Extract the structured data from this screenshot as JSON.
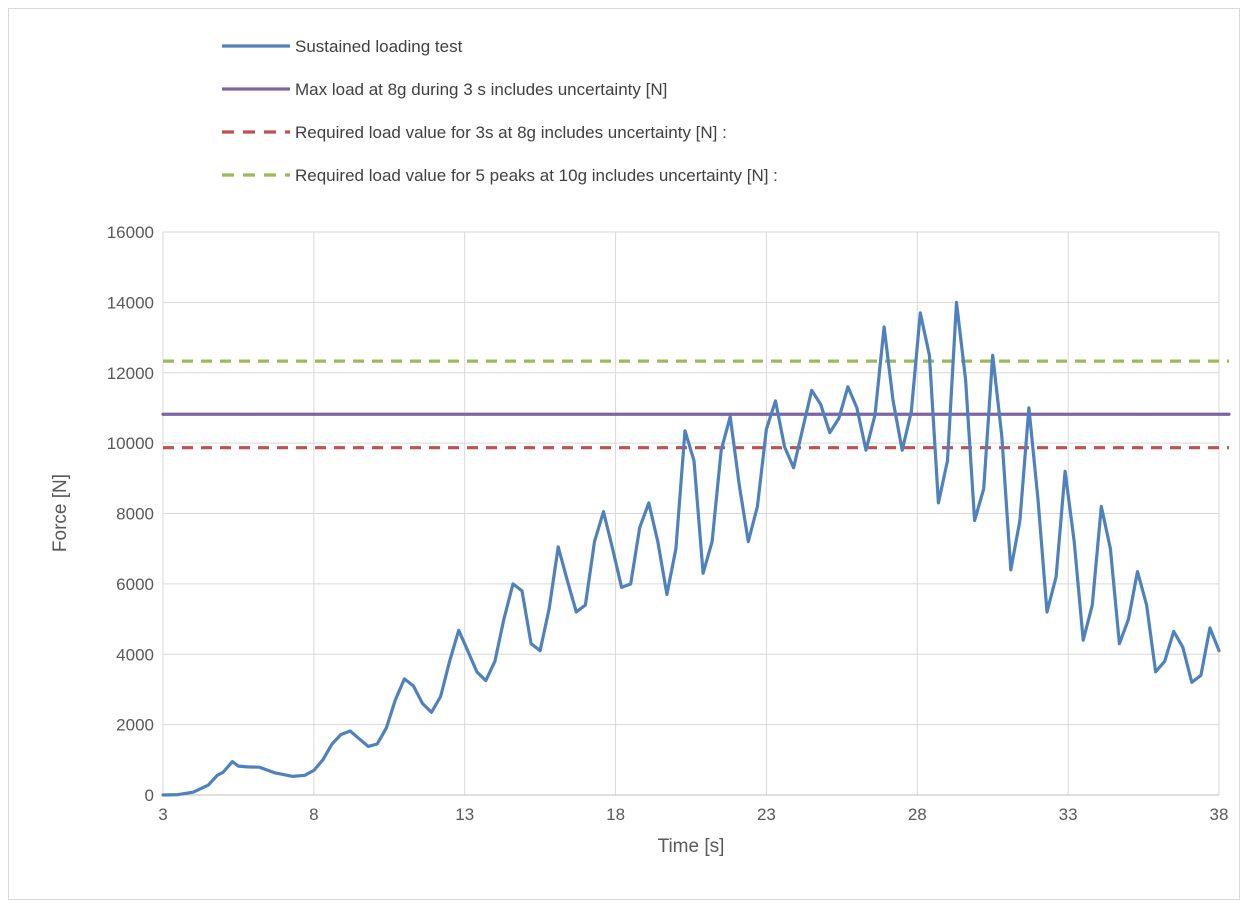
{
  "chart_data": {
    "type": "line",
    "title": "",
    "xlabel": "Time [s]",
    "ylabel": "Force [N]",
    "xlim": [
      3,
      38
    ],
    "ylim": [
      0,
      16000
    ],
    "x_ticks": [
      "3",
      "8",
      "13",
      "18",
      "23",
      "28",
      "33",
      "38"
    ],
    "y_ticks": [
      "0",
      "2000",
      "4000",
      "6000",
      "8000",
      "10000",
      "12000",
      "14000",
      "16000"
    ],
    "grid": true,
    "legend_position": "top",
    "series": [
      {
        "name": "Sustained loading test",
        "style": "solid",
        "color": "#4f81bd",
        "points": [
          [
            3.0,
            0
          ],
          [
            3.5,
            10
          ],
          [
            4.0,
            80
          ],
          [
            4.5,
            280
          ],
          [
            4.8,
            560
          ],
          [
            5.0,
            650
          ],
          [
            5.3,
            950
          ],
          [
            5.5,
            820
          ],
          [
            5.8,
            800
          ],
          [
            6.2,
            790
          ],
          [
            6.7,
            630
          ],
          [
            7.0,
            580
          ],
          [
            7.3,
            530
          ],
          [
            7.7,
            560
          ],
          [
            8.0,
            700
          ],
          [
            8.3,
            1000
          ],
          [
            8.6,
            1450
          ],
          [
            8.9,
            1720
          ],
          [
            9.2,
            1820
          ],
          [
            9.5,
            1600
          ],
          [
            9.8,
            1380
          ],
          [
            10.1,
            1450
          ],
          [
            10.4,
            1900
          ],
          [
            10.7,
            2700
          ],
          [
            11.0,
            3300
          ],
          [
            11.3,
            3100
          ],
          [
            11.6,
            2600
          ],
          [
            11.9,
            2350
          ],
          [
            12.2,
            2800
          ],
          [
            12.5,
            3800
          ],
          [
            12.8,
            4680
          ],
          [
            13.1,
            4100
          ],
          [
            13.4,
            3500
          ],
          [
            13.7,
            3250
          ],
          [
            14.0,
            3800
          ],
          [
            14.3,
            5000
          ],
          [
            14.6,
            6000
          ],
          [
            14.9,
            5800
          ],
          [
            15.2,
            4300
          ],
          [
            15.5,
            4100
          ],
          [
            15.8,
            5300
          ],
          [
            16.1,
            7050
          ],
          [
            16.4,
            6100
          ],
          [
            16.7,
            5200
          ],
          [
            17.0,
            5400
          ],
          [
            17.3,
            7200
          ],
          [
            17.6,
            8050
          ],
          [
            17.9,
            7000
          ],
          [
            18.2,
            5900
          ],
          [
            18.5,
            6000
          ],
          [
            18.8,
            7600
          ],
          [
            19.1,
            8300
          ],
          [
            19.4,
            7200
          ],
          [
            19.7,
            5700
          ],
          [
            20.0,
            7000
          ],
          [
            20.3,
            10350
          ],
          [
            20.6,
            9500
          ],
          [
            20.9,
            6300
          ],
          [
            21.2,
            7200
          ],
          [
            21.5,
            9800
          ],
          [
            21.8,
            10750
          ],
          [
            22.1,
            8800
          ],
          [
            22.4,
            7200
          ],
          [
            22.7,
            8200
          ],
          [
            23.0,
            10400
          ],
          [
            23.3,
            11200
          ],
          [
            23.6,
            9900
          ],
          [
            23.9,
            9300
          ],
          [
            24.2,
            10400
          ],
          [
            24.5,
            11500
          ],
          [
            24.8,
            11100
          ],
          [
            25.1,
            10300
          ],
          [
            25.4,
            10700
          ],
          [
            25.7,
            11600
          ],
          [
            26.0,
            11000
          ],
          [
            26.3,
            9800
          ],
          [
            26.6,
            10800
          ],
          [
            26.9,
            13300
          ],
          [
            27.2,
            11200
          ],
          [
            27.5,
            9800
          ],
          [
            27.8,
            10900
          ],
          [
            28.1,
            13700
          ],
          [
            28.4,
            12500
          ],
          [
            28.7,
            8300
          ],
          [
            29.0,
            9500
          ],
          [
            29.3,
            14000
          ],
          [
            29.6,
            11800
          ],
          [
            29.9,
            7800
          ],
          [
            30.2,
            8700
          ],
          [
            30.5,
            12500
          ],
          [
            30.8,
            10200
          ],
          [
            31.1,
            6400
          ],
          [
            31.4,
            7800
          ],
          [
            31.7,
            11000
          ],
          [
            32.0,
            8400
          ],
          [
            32.3,
            5200
          ],
          [
            32.6,
            6200
          ],
          [
            32.9,
            9200
          ],
          [
            33.2,
            7200
          ],
          [
            33.5,
            4400
          ],
          [
            33.8,
            5400
          ],
          [
            34.1,
            8200
          ],
          [
            34.4,
            7000
          ],
          [
            34.7,
            4300
          ],
          [
            35.0,
            5000
          ],
          [
            35.3,
            6350
          ],
          [
            35.6,
            5400
          ],
          [
            35.9,
            3500
          ],
          [
            36.2,
            3800
          ],
          [
            36.5,
            4650
          ],
          [
            36.8,
            4200
          ],
          [
            37.1,
            3200
          ],
          [
            37.4,
            3400
          ],
          [
            37.7,
            4750
          ],
          [
            38.0,
            4100
          ]
        ]
      },
      {
        "name": "Max load at 8g during 3 s includes uncertainty [N]",
        "style": "solid",
        "color": "#8064a2",
        "points": [
          [
            3,
            10820
          ],
          [
            38,
            10820
          ]
        ]
      },
      {
        "name": "Required load value for 3s at 8g includes uncertainty [N] :",
        "style": "dashed",
        "color": "#c0504d",
        "points": [
          [
            3,
            9870
          ],
          [
            38,
            9870
          ]
        ]
      },
      {
        "name": "Required load value for 5 peaks at 10g includes uncertainty [N] :",
        "style": "dashed",
        "color": "#9bbb59",
        "points": [
          [
            3,
            12330
          ],
          [
            38,
            12330
          ]
        ]
      }
    ]
  }
}
